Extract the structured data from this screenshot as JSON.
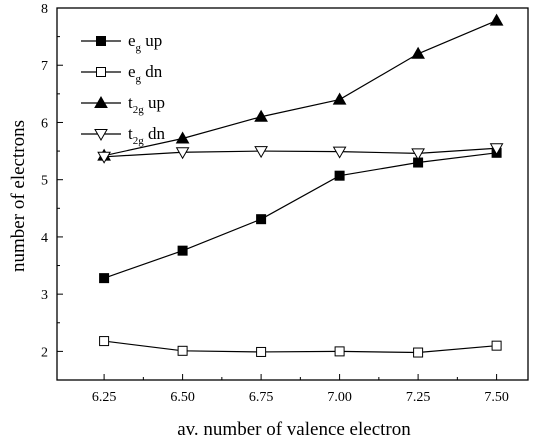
{
  "chart_data": {
    "type": "line",
    "xlabel": "av. number of valence electron",
    "ylabel": "number of electrons",
    "xlim": [
      6.1,
      7.6
    ],
    "ylim": [
      1.5,
      8
    ],
    "x": [
      6.25,
      6.5,
      6.75,
      7.0,
      7.25,
      7.5
    ],
    "x_ticks": [
      "6.25",
      "6.50",
      "6.75",
      "7.00",
      "7.25",
      "7.50"
    ],
    "y_ticks": [
      "2",
      "3",
      "4",
      "5",
      "6",
      "7",
      "8"
    ],
    "y_tick_values": [
      2,
      3,
      4,
      5,
      6,
      7,
      8
    ],
    "grid": false,
    "legend_position": "top-left",
    "series": [
      {
        "name": "e_g up",
        "label_main": "e",
        "label_sub": "g",
        "label_tail": " up",
        "marker": "square-filled",
        "values": [
          3.28,
          3.76,
          4.31,
          5.07,
          5.3,
          5.47
        ]
      },
      {
        "name": "e_g dn",
        "label_main": "e",
        "label_sub": "g",
        "label_tail": " dn",
        "marker": "square-open",
        "values": [
          2.18,
          2.01,
          1.99,
          2.0,
          1.98,
          2.1
        ]
      },
      {
        "name": "t_2g up",
        "label_main": "t",
        "label_sub": "2g",
        "label_tail": " up",
        "marker": "triangle-up-filled",
        "values": [
          5.42,
          5.72,
          6.1,
          6.4,
          7.2,
          7.78
        ]
      },
      {
        "name": "t_2g dn",
        "label_main": "t",
        "label_sub": "2g",
        "label_tail": " dn",
        "marker": "triangle-down-open",
        "values": [
          5.4,
          5.48,
          5.5,
          5.49,
          5.46,
          5.55
        ]
      }
    ]
  }
}
